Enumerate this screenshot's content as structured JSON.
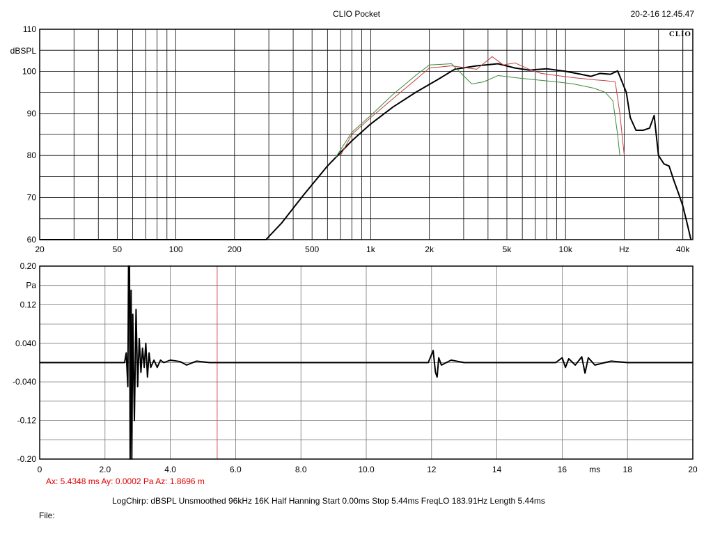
{
  "header": {
    "app_title": "CLIO Pocket",
    "timestamp": "20-2-16 12.45.47",
    "logo_text": "CLIO"
  },
  "footer": {
    "cursor_readout": "Ax: 5.4348 ms   Ay: 0.0002 Pa   Az: 1.8696 m",
    "settings_line": "LogChirp:  dBSPL   Unsmoothed   96kHz   16K   Half Hanning   Start 0.00ms    Stop 5.44ms    FreqLO 183.91Hz    Length 5.44ms",
    "file_label": "File:"
  },
  "colors": {
    "trace_main": "#000000",
    "trace_red": "#c04040",
    "trace_green": "#3a8a3a",
    "cursor": "#e00000",
    "grid": "#000000"
  },
  "chart_data": [
    {
      "type": "line",
      "scale_x": "log",
      "ylabel": "dBSPL",
      "xlim": [
        20,
        45000
      ],
      "ylim": [
        60,
        110
      ],
      "x_ticks": [
        {
          "value": 20,
          "label": "20"
        },
        {
          "value": 50,
          "label": "50"
        },
        {
          "value": 100,
          "label": "100"
        },
        {
          "value": 200,
          "label": "200"
        },
        {
          "value": 500,
          "label": "500"
        },
        {
          "value": 1000,
          "label": "1k"
        },
        {
          "value": 2000,
          "label": "2k"
        },
        {
          "value": 5000,
          "label": "5k"
        },
        {
          "value": 10000,
          "label": "10k"
        },
        {
          "value": 20000,
          "label": "Hz"
        },
        {
          "value": 40000,
          "label": "40k"
        }
      ],
      "y_ticks": [
        {
          "value": 110,
          "label": "110"
        },
        {
          "value": 100,
          "label": "100"
        },
        {
          "value": 90,
          "label": "90"
        },
        {
          "value": 80,
          "label": "80"
        },
        {
          "value": 70,
          "label": "70"
        },
        {
          "value": 60,
          "label": "60"
        }
      ],
      "grid": true,
      "series": [
        {
          "color": "#000000",
          "points": [
            [
              20,
              60
            ],
            [
              290,
              60
            ],
            [
              350,
              64
            ],
            [
              450,
              70.5
            ],
            [
              600,
              77.5
            ],
            [
              800,
              83.5
            ],
            [
              1000,
              87.5
            ],
            [
              1300,
              91.5
            ],
            [
              1700,
              95
            ],
            [
              2200,
              98
            ],
            [
              2700,
              100.5
            ],
            [
              3500,
              101.3
            ],
            [
              4500,
              101.8
            ],
            [
              5500,
              100.8
            ],
            [
              6500,
              100.3
            ],
            [
              8000,
              100.6
            ],
            [
              10000,
              100
            ],
            [
              12000,
              99.3
            ],
            [
              13500,
              98.8
            ],
            [
              15000,
              99.5
            ],
            [
              17000,
              99.3
            ],
            [
              18500,
              100.1
            ],
            [
              19500,
              97.5
            ],
            [
              20500,
              95
            ],
            [
              21500,
              89
            ],
            [
              23000,
              86
            ],
            [
              25000,
              86
            ],
            [
              27000,
              86.5
            ],
            [
              28500,
              89.5
            ],
            [
              30000,
              80
            ],
            [
              32000,
              78
            ],
            [
              34000,
              77.5
            ],
            [
              36000,
              74
            ],
            [
              38000,
              71
            ],
            [
              40000,
              68
            ],
            [
              42000,
              64
            ],
            [
              44000,
              60
            ]
          ]
        },
        {
          "color": "#c04040",
          "points": [
            [
              700,
              80
            ],
            [
              800,
              85
            ],
            [
              1000,
              89
            ],
            [
              1300,
              93.5
            ],
            [
              1700,
              98
            ],
            [
              2000,
              100.8
            ],
            [
              2600,
              101.3
            ],
            [
              3500,
              100.5
            ],
            [
              4200,
              103.5
            ],
            [
              4800,
              101.5
            ],
            [
              5500,
              102
            ],
            [
              6500,
              100.5
            ],
            [
              7500,
              99.5
            ],
            [
              9000,
              99
            ],
            [
              11000,
              98.5
            ],
            [
              14000,
              98
            ],
            [
              16000,
              97.8
            ],
            [
              18000,
              97.5
            ],
            [
              19000,
              90
            ],
            [
              20000,
              80
            ]
          ]
        },
        {
          "color": "#3a8a3a",
          "points": [
            [
              660,
              79.5
            ],
            [
              800,
              85.5
            ],
            [
              1000,
              89.5
            ],
            [
              1300,
              94.5
            ],
            [
              1700,
              99
            ],
            [
              2000,
              101.5
            ],
            [
              2600,
              101.8
            ],
            [
              3300,
              97
            ],
            [
              3800,
              97.5
            ],
            [
              4500,
              99
            ],
            [
              5500,
              98.5
            ],
            [
              7000,
              98
            ],
            [
              9000,
              97.5
            ],
            [
              11000,
              97
            ],
            [
              14000,
              96
            ],
            [
              16000,
              95
            ],
            [
              17500,
              93
            ],
            [
              18500,
              85
            ],
            [
              19000,
              80
            ]
          ]
        }
      ]
    },
    {
      "type": "line",
      "ylabel": "Pa",
      "xlabel": "ms",
      "xlim": [
        0,
        20
      ],
      "ylim": [
        -0.2,
        0.2
      ],
      "x_ticks": [
        {
          "value": 0,
          "label": "0"
        },
        {
          "value": 2,
          "label": "2.0"
        },
        {
          "value": 4,
          "label": "4.0"
        },
        {
          "value": 6,
          "label": "6.0"
        },
        {
          "value": 8,
          "label": "8.0"
        },
        {
          "value": 10,
          "label": "10.0"
        },
        {
          "value": 12,
          "label": "12"
        },
        {
          "value": 14,
          "label": "14"
        },
        {
          "value": 16,
          "label": "16"
        },
        {
          "value": 17,
          "label": "ms"
        },
        {
          "value": 18,
          "label": "18"
        },
        {
          "value": 20,
          "label": "20"
        }
      ],
      "y_ticks": [
        {
          "value": 0.2,
          "label": "0.20"
        },
        {
          "value": 0.16,
          "label": "Pa"
        },
        {
          "value": 0.12,
          "label": "0.12"
        },
        {
          "value": 0.04,
          "label": "0.040"
        },
        {
          "value": -0.04,
          "label": "-0.040"
        },
        {
          "value": -0.12,
          "label": "-0.12"
        },
        {
          "value": -0.2,
          "label": "-0.20"
        }
      ],
      "cursor_x": 5.4348,
      "grid": true,
      "series": [
        {
          "color": "#000000",
          "points": [
            [
              0,
              0
            ],
            [
              2.6,
              0
            ],
            [
              2.65,
              0.02
            ],
            [
              2.7,
              -0.05
            ],
            [
              2.72,
              0.2
            ],
            [
              2.75,
              0.2
            ],
            [
              2.77,
              -0.2
            ],
            [
              2.8,
              0.15
            ],
            [
              2.82,
              -0.2
            ],
            [
              2.85,
              0.1
            ],
            [
              2.9,
              -0.12
            ],
            [
              2.95,
              0.11
            ],
            [
              3.0,
              -0.05
            ],
            [
              3.05,
              0.05
            ],
            [
              3.1,
              -0.02
            ],
            [
              3.15,
              0.03
            ],
            [
              3.2,
              -0.01
            ],
            [
              3.25,
              0.04
            ],
            [
              3.3,
              -0.03
            ],
            [
              3.35,
              0.02
            ],
            [
              3.4,
              -0.01
            ],
            [
              3.5,
              0.005
            ],
            [
              3.6,
              -0.01
            ],
            [
              3.7,
              0.005
            ],
            [
              3.8,
              0
            ],
            [
              4.0,
              0.005
            ],
            [
              4.3,
              0.002
            ],
            [
              4.5,
              -0.005
            ],
            [
              4.8,
              0.003
            ],
            [
              5.2,
              0
            ],
            [
              6,
              0
            ],
            [
              8,
              0
            ],
            [
              10,
              0
            ],
            [
              11.9,
              0
            ],
            [
              12.05,
              0.025
            ],
            [
              12.12,
              -0.02
            ],
            [
              12.17,
              -0.03
            ],
            [
              12.22,
              0.01
            ],
            [
              12.3,
              -0.005
            ],
            [
              12.6,
              0.005
            ],
            [
              13,
              0
            ],
            [
              15.8,
              0
            ],
            [
              16.0,
              0.01
            ],
            [
              16.1,
              -0.01
            ],
            [
              16.2,
              0.008
            ],
            [
              16.4,
              -0.005
            ],
            [
              16.6,
              0.012
            ],
            [
              16.7,
              -0.022
            ],
            [
              16.8,
              0.01
            ],
            [
              17.0,
              -0.005
            ],
            [
              17.5,
              0.003
            ],
            [
              18,
              0
            ],
            [
              20,
              0
            ]
          ]
        }
      ]
    }
  ]
}
